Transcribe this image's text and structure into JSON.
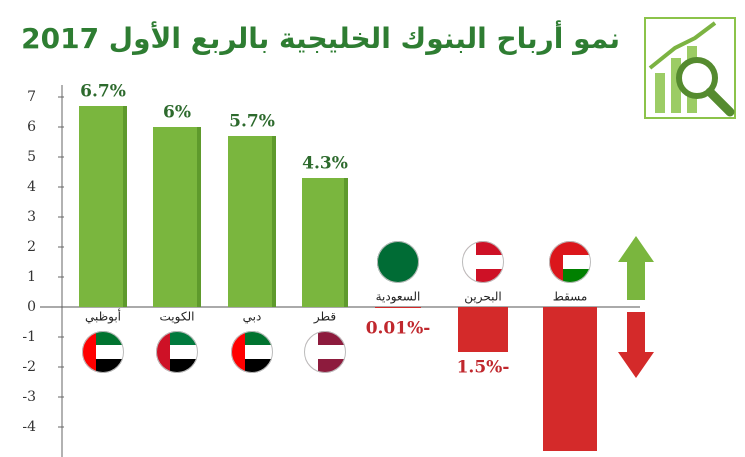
{
  "chart_data": {
    "type": "bar",
    "title": "نمو أرباح البنوك الخليجية بالربع الأول 2017",
    "categories": [
      "أبوظبي",
      "الكويت",
      "دبي",
      "قطر",
      "السعودية",
      "البحرين",
      "مسقط"
    ],
    "values": [
      6.7,
      6,
      5.7,
      4.3,
      -0.01,
      -1.5,
      -4.8
    ],
    "value_labels": [
      "6.7%",
      "6%",
      "5.7%",
      "4.3%",
      "0.01%-",
      "1.5%-",
      null
    ],
    "positive_color": "#7ab63e",
    "negative_color": "#d42a2a",
    "ylim": [
      -5,
      7.4
    ],
    "yticks": [
      7,
      6,
      5,
      4,
      3,
      2,
      1,
      0,
      -1,
      -2,
      -3,
      -4
    ]
  }
}
